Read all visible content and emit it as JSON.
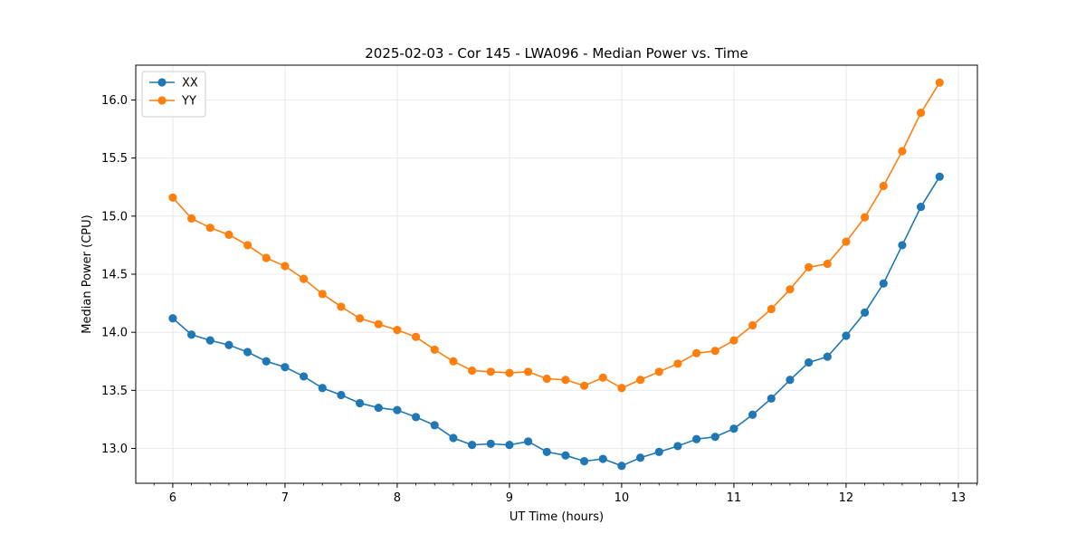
{
  "chart_data": {
    "type": "line",
    "title": "2025-02-03 - Cor 145 - LWA096 - Median Power vs. Time",
    "xlabel": "UT Time (hours)",
    "ylabel": "Median Power (CPU)",
    "xlim": [
      5.67,
      13.17
    ],
    "ylim": [
      12.7,
      16.3
    ],
    "xticks": [
      6,
      7,
      8,
      9,
      10,
      11,
      12,
      13
    ],
    "yticks": [
      13.0,
      13.5,
      14.0,
      14.5,
      15.0,
      15.5,
      16.0
    ],
    "xtick_labels": [
      "6",
      "7",
      "8",
      "9",
      "10",
      "11",
      "12",
      "13"
    ],
    "ytick_labels": [
      "13.0",
      "13.5",
      "14.0",
      "14.5",
      "15.0",
      "15.5",
      "16.0"
    ],
    "grid": true,
    "legend_position": "top-left",
    "x": [
      6.0,
      6.1667,
      6.3333,
      6.5,
      6.6667,
      6.8333,
      7.0,
      7.1667,
      7.3333,
      7.5,
      7.6667,
      7.8333,
      8.0,
      8.1667,
      8.3333,
      8.5,
      8.6667,
      8.8333,
      9.0,
      9.1667,
      9.3333,
      9.5,
      9.6667,
      9.8333,
      10.0,
      10.1667,
      10.3333,
      10.5,
      10.6667,
      10.8333,
      11.0,
      11.1667,
      11.3333,
      11.5,
      11.6667,
      11.8333,
      12.0,
      12.1667,
      12.3333,
      12.5,
      12.6667,
      12.8333
    ],
    "series": [
      {
        "name": "XX",
        "color": "#1f77b4",
        "values": [
          14.12,
          13.98,
          13.93,
          13.89,
          13.83,
          13.75,
          13.7,
          13.62,
          13.52,
          13.46,
          13.39,
          13.35,
          13.33,
          13.27,
          13.2,
          13.09,
          13.03,
          13.04,
          13.03,
          13.06,
          12.97,
          12.94,
          12.89,
          12.91,
          12.85,
          12.92,
          12.97,
          13.02,
          13.08,
          13.1,
          13.17,
          13.29,
          13.43,
          13.59,
          13.74,
          13.79,
          13.97,
          14.17,
          14.42,
          14.75,
          15.08,
          15.34
        ]
      },
      {
        "name": "YY",
        "color": "#ff7f0e",
        "values": [
          15.16,
          14.98,
          14.9,
          14.84,
          14.75,
          14.64,
          14.57,
          14.46,
          14.33,
          14.22,
          14.12,
          14.07,
          14.02,
          13.96,
          13.85,
          13.75,
          13.67,
          13.66,
          13.65,
          13.66,
          13.6,
          13.59,
          13.54,
          13.61,
          13.52,
          13.59,
          13.66,
          13.73,
          13.82,
          13.84,
          13.93,
          14.06,
          14.2,
          14.37,
          14.56,
          14.59,
          14.78,
          14.99,
          15.26,
          15.56,
          15.89,
          16.15
        ]
      }
    ]
  }
}
